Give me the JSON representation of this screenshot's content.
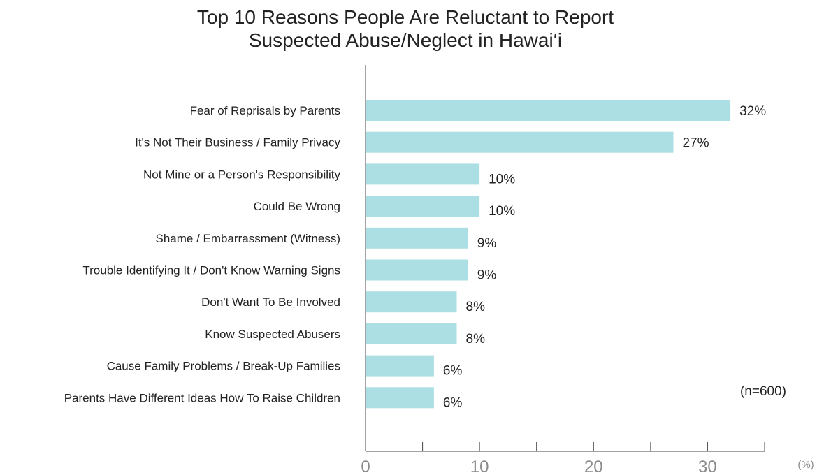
{
  "chart_data": {
    "type": "bar",
    "orientation": "horizontal",
    "title_lines": [
      "Top 10 Reasons People Are Reluctant to Report",
      "Suspected Abuse/Neglect in Hawai‘i"
    ],
    "categories": [
      "Fear of Reprisals by Parents",
      "It's Not Their Business / Family Privacy",
      "Not Mine or a Person's Responsibility",
      "Could Be Wrong",
      "Shame / Embarrassment (Witness)",
      "Trouble Identifying It / Don't Know Warning Signs",
      "Don't Want To Be Involved",
      "Know Suspected Abusers",
      "Cause Family Problems / Break-Up Families",
      "Parents Have Different Ideas How To Raise Children"
    ],
    "values": [
      32,
      27,
      10,
      10,
      9,
      9,
      8,
      8,
      6,
      6
    ],
    "value_labels": [
      "32%",
      "27%",
      "10%",
      "10%",
      "9%",
      "9%",
      "8%",
      "8%",
      "6%",
      "6%"
    ],
    "xlim": [
      0,
      35
    ],
    "x_ticks": [
      0,
      5,
      10,
      15,
      20,
      25,
      30,
      35
    ],
    "x_tick_labels": [
      "0",
      "10",
      "20",
      "30"
    ],
    "x_tick_label_values": [
      0,
      10,
      20,
      30
    ],
    "x_unit": "(%)",
    "note": "(n=600)",
    "grid": false,
    "legend": "none",
    "bar_color": "#acdfe3"
  }
}
